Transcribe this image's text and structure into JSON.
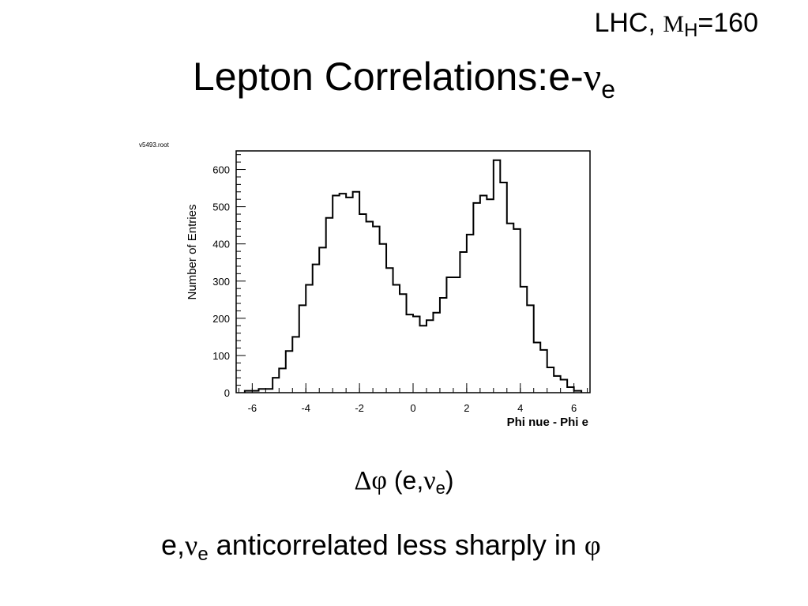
{
  "header": {
    "subtitle_prefix": "LHC,",
    "subtitle_m": "M",
    "subtitle_sub": "H",
    "subtitle_suffix": "=160",
    "title_text": "Lepton Correlations:e-",
    "title_greek": "ν",
    "title_sub": "e"
  },
  "chart_data": {
    "type": "bar",
    "histogram": true,
    "filename_label": "v5493.root",
    "xlabel": "Phi nue - Phi e",
    "ylabel": "Number of Entries",
    "xlim": [
      -6.6,
      6.6
    ],
    "ylim": [
      0,
      650
    ],
    "xticks": [
      -6,
      -4,
      -2,
      0,
      2,
      4,
      6
    ],
    "yticks": [
      0,
      100,
      200,
      300,
      400,
      500,
      600
    ],
    "bin_edges": [
      -6.28,
      -5.76,
      -5.24,
      -5.0,
      -4.75,
      -4.5,
      -4.25,
      -4.0,
      -3.75,
      -3.5,
      -3.25,
      -3.0,
      -2.75,
      -2.5,
      -2.25,
      -2.0,
      -1.75,
      -1.5,
      -1.25,
      -1.0,
      -0.75,
      -0.5,
      -0.25,
      0.0,
      0.25,
      0.5,
      0.75,
      1.0,
      1.25,
      1.5,
      1.75,
      2.0,
      2.25,
      2.5,
      2.75,
      3.0,
      3.25,
      3.5,
      3.75,
      4.0,
      4.25,
      4.5,
      4.75,
      5.0,
      5.25,
      5.5,
      5.75,
      6.0,
      6.28
    ],
    "counts": [
      5,
      10,
      40,
      65,
      112,
      150,
      235,
      290,
      345,
      390,
      470,
      530,
      535,
      525,
      540,
      480,
      460,
      447,
      400,
      335,
      290,
      265,
      210,
      205,
      180,
      195,
      215,
      255,
      310,
      310,
      378,
      425,
      510,
      530,
      520,
      625,
      565,
      455,
      440,
      285,
      235,
      135,
      115,
      68,
      45,
      35,
      15,
      5
    ]
  },
  "xcaption": {
    "delta_phi": "Δφ",
    "open": " (e,",
    "nu": "ν",
    "sub": "e",
    "close": ")"
  },
  "note": {
    "part1": "e,",
    "nu": "ν",
    "sub": "e",
    "part2": " anticorrelated less sharply in ",
    "phi": "φ"
  }
}
